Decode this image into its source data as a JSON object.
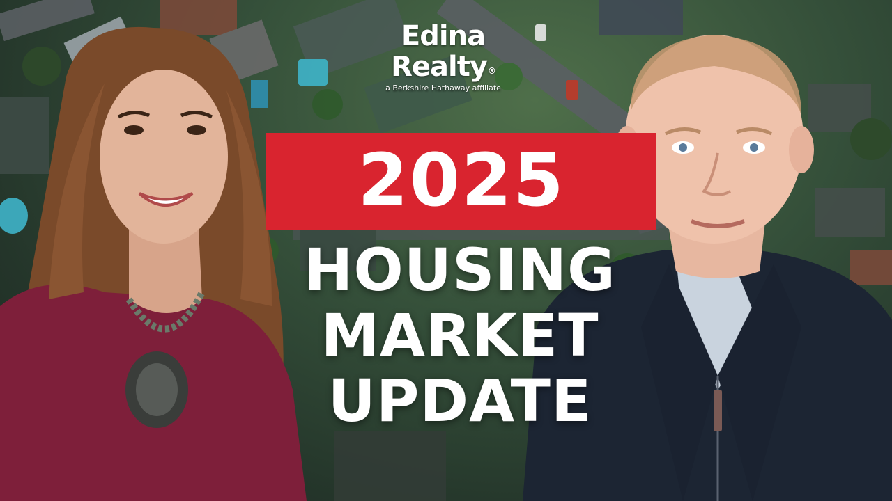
{
  "logo": {
    "brand": "Edina Realty",
    "registered_mark": "®",
    "tagline": "a Berkshire Hathaway affiliate"
  },
  "banner": {
    "year": "2025",
    "color": "#d9242f"
  },
  "headline": {
    "line1": "HOUSING",
    "line2": "MARKET",
    "line3": "UPDATE"
  },
  "background": {
    "scene": "aerial-neighborhood"
  }
}
